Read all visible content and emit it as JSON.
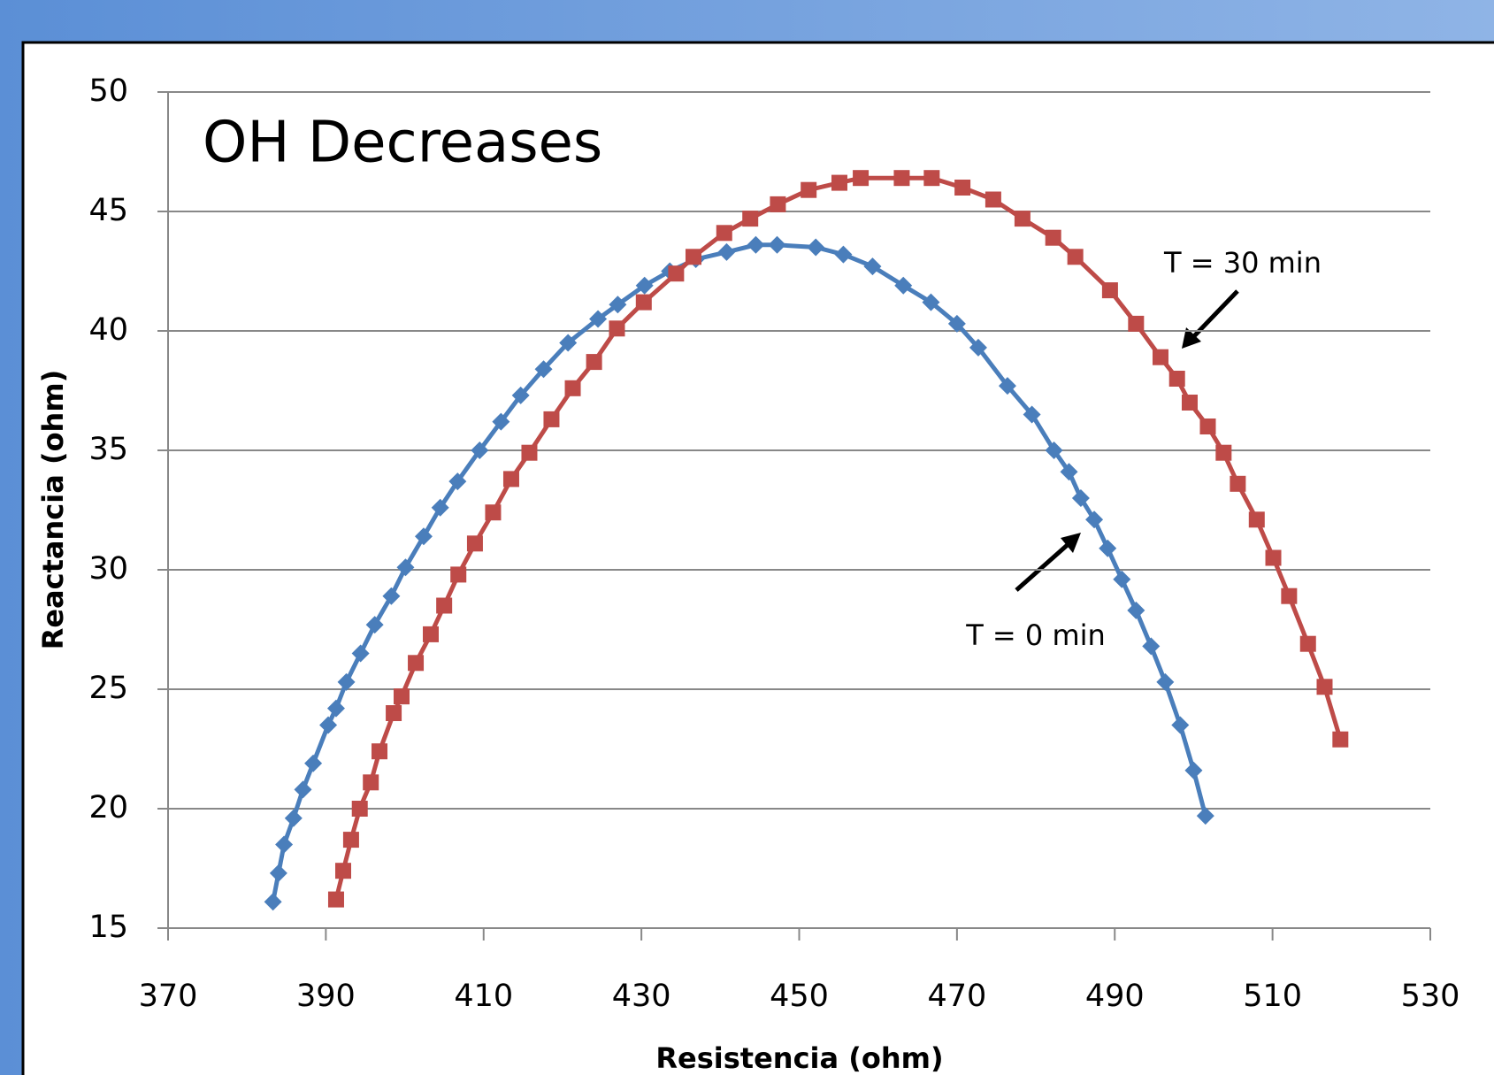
{
  "chart_data": {
    "type": "line",
    "title": "OH Decreases",
    "x_label": "Resistencia (ohm)",
    "y_label": "Reactancia (ohm)",
    "xlim": [
      370,
      530
    ],
    "xticks": [
      370,
      390,
      410,
      430,
      450,
      470,
      490,
      510,
      530
    ],
    "ylim": [
      15,
      50
    ],
    "yticks": [
      15,
      20,
      25,
      30,
      35,
      40,
      45,
      50
    ],
    "grid": true,
    "series": [
      {
        "name": "T = 0 min",
        "color": "#4a7ebb",
        "marker": "diamond",
        "x": [
          383.3,
          384.0,
          384.7,
          385.9,
          387.1,
          388.4,
          390.3,
          391.3,
          392.6,
          394.4,
          396.2,
          398.3,
          400.1,
          402.4,
          404.5,
          406.7,
          409.5,
          412.2,
          414.7,
          417.6,
          420.7,
          424.5,
          427.0,
          430.4,
          433.6,
          436.9,
          440.8,
          444.5,
          447.2,
          452.1,
          455.6,
          459.3,
          463.2,
          466.7,
          470.0,
          472.7,
          476.4,
          479.5,
          482.3,
          484.2,
          485.7,
          487.4,
          489.1,
          490.9,
          492.7,
          494.6,
          496.4,
          498.3,
          500.0,
          501.5
        ],
        "values": [
          16.1,
          17.3,
          18.5,
          19.6,
          20.8,
          21.9,
          23.5,
          24.2,
          25.3,
          26.5,
          27.7,
          28.9,
          30.1,
          31.4,
          32.6,
          33.7,
          35.0,
          36.2,
          37.3,
          38.4,
          39.5,
          40.5,
          41.1,
          41.9,
          42.5,
          43.0,
          43.3,
          43.6,
          43.6,
          43.5,
          43.2,
          42.7,
          41.9,
          41.2,
          40.3,
          39.3,
          37.7,
          36.5,
          35.0,
          34.1,
          33.0,
          32.1,
          30.9,
          29.6,
          28.3,
          26.8,
          25.3,
          23.5,
          21.6,
          19.7
        ]
      },
      {
        "name": "T = 30 min",
        "color": "#be4b48",
        "marker": "square",
        "x": [
          391.3,
          392.2,
          393.2,
          394.3,
          395.7,
          396.8,
          398.6,
          399.6,
          401.4,
          403.3,
          405.0,
          406.8,
          408.9,
          411.2,
          413.5,
          415.8,
          418.6,
          421.3,
          424.0,
          426.9,
          430.3,
          434.4,
          436.6,
          440.5,
          443.8,
          447.3,
          451.2,
          455.1,
          457.8,
          463.0,
          466.8,
          470.7,
          474.6,
          478.3,
          482.2,
          485.0,
          489.4,
          492.7,
          495.8,
          497.9,
          499.5,
          501.8,
          503.8,
          505.6,
          508.0,
          510.1,
          512.1,
          514.5,
          516.6,
          518.6
        ],
        "values": [
          16.2,
          17.4,
          18.7,
          20.0,
          21.1,
          22.4,
          24.0,
          24.7,
          26.1,
          27.3,
          28.5,
          29.8,
          31.1,
          32.4,
          33.8,
          34.9,
          36.3,
          37.6,
          38.7,
          40.1,
          41.2,
          42.4,
          43.1,
          44.1,
          44.7,
          45.3,
          45.9,
          46.2,
          46.4,
          46.4,
          46.4,
          46.0,
          45.5,
          44.7,
          43.9,
          43.1,
          41.7,
          40.3,
          38.9,
          38.0,
          37.0,
          36.0,
          34.9,
          33.6,
          32.1,
          30.5,
          28.9,
          26.9,
          25.1,
          22.9
        ]
      }
    ]
  }
}
